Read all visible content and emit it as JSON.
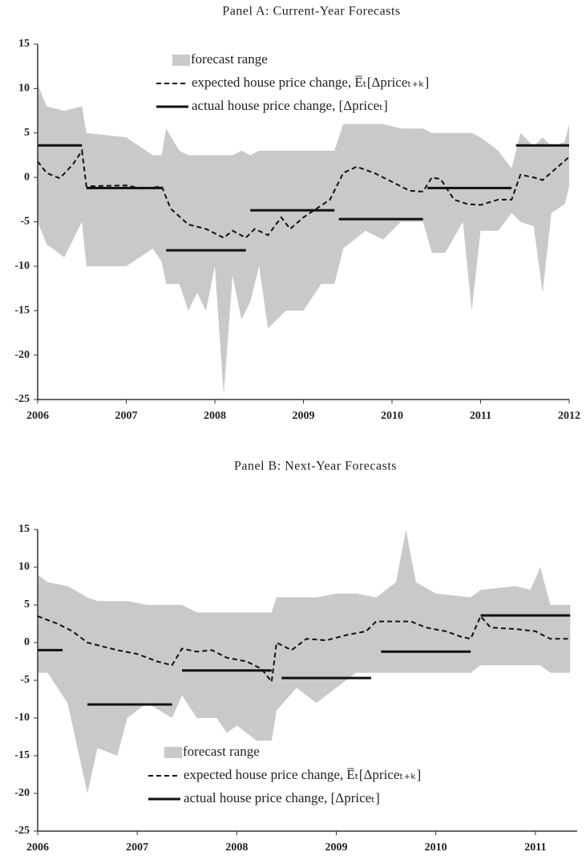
{
  "chart_data": [
    {
      "type": "line",
      "title": "Panel A: Current-Year Forecasts",
      "xlim": [
        2006,
        2012
      ],
      "xticks": [
        2006,
        2007,
        2008,
        2009,
        2010,
        2011,
        2012
      ],
      "ylim": [
        -25,
        15
      ],
      "yticks": [
        -25,
        -20,
        -15,
        -10,
        -5,
        0,
        5,
        10,
        15
      ],
      "grid": false,
      "legend": "upper center",
      "band": {
        "name": "forecast range",
        "color": "#c9c9c9",
        "x": [
          2006.0,
          2006.1,
          2006.3,
          2006.5,
          2006.55,
          2007.0,
          2007.3,
          2007.4,
          2007.45,
          2007.6,
          2007.7,
          2007.8,
          2007.9,
          2008.0,
          2008.1,
          2008.2,
          2008.3,
          2008.4,
          2008.5,
          2008.6,
          2008.8,
          2009.0,
          2009.2,
          2009.35,
          2009.45,
          2009.7,
          2009.9,
          2010.1,
          2010.35,
          2010.45,
          2010.6,
          2010.8,
          2010.9,
          2011.0,
          2011.2,
          2011.35,
          2011.45,
          2011.6,
          2011.7,
          2011.8,
          2011.95,
          2012.0
        ],
        "low": [
          -5,
          -7.5,
          -9,
          -5,
          -10,
          -10,
          -8,
          -9.5,
          -12,
          -12,
          -15,
          -13,
          -15,
          -10,
          -24.5,
          -11,
          -16,
          -14,
          -10,
          -17,
          -15,
          -15,
          -12,
          -12,
          -8,
          -6,
          -7,
          -5,
          -5,
          -8.5,
          -8.5,
          -5,
          -15,
          -6,
          -6,
          -4,
          -5,
          -5.5,
          -13,
          -4,
          -3,
          -1
        ],
        "high": [
          10.5,
          8,
          7.5,
          8,
          5,
          4.5,
          2.5,
          2.5,
          5.5,
          3,
          2.5,
          2.5,
          2.5,
          2.5,
          2.5,
          2.5,
          3,
          2.5,
          3,
          3,
          3,
          3,
          3,
          3,
          6,
          6,
          6,
          5.5,
          5.5,
          5,
          5,
          5,
          5,
          4.5,
          3,
          1,
          5,
          3.5,
          4.5,
          3.5,
          4,
          6
        ]
      },
      "series": [
        {
          "name": "expected house price change, E̅ₜ[Δpriceₜ₊ₖ]",
          "color": "#111111",
          "dash": true,
          "x": [
            2006.0,
            2006.1,
            2006.25,
            2006.4,
            2006.5,
            2006.55,
            2007.0,
            2007.2,
            2007.4,
            2007.5,
            2007.7,
            2007.9,
            2008.1,
            2008.2,
            2008.35,
            2008.45,
            2008.6,
            2008.75,
            2008.85,
            2009.0,
            2009.3,
            2009.45,
            2009.6,
            2009.8,
            2010.0,
            2010.2,
            2010.35,
            2010.45,
            2010.55,
            2010.7,
            2010.85,
            2011.0,
            2011.2,
            2011.35,
            2011.45,
            2011.6,
            2011.7,
            2012.0
          ],
          "values": [
            1.8,
            0.5,
            -0.1,
            1.5,
            3.0,
            -1.0,
            -0.9,
            -1.3,
            -1.0,
            -3.5,
            -5.3,
            -5.8,
            -6.8,
            -6.0,
            -6.8,
            -5.8,
            -6.5,
            -4.5,
            -5.8,
            -4.5,
            -2.5,
            0.5,
            1.2,
            0.5,
            -0.5,
            -1.5,
            -1.6,
            0.0,
            -0.2,
            -2.5,
            -3.0,
            -3.1,
            -2.5,
            -2.5,
            0.3,
            0.0,
            -0.3,
            2.3
          ]
        },
        {
          "name": "actual house price change, [Δpriceₜ]",
          "color": "#111111",
          "dash": false,
          "x": [
            2006.0,
            2006.5,
            2006.52,
            2006.55,
            2007.4,
            2007.42,
            2007.45,
            2008.35,
            2008.37,
            2008.4,
            2009.35,
            2009.37,
            2009.4,
            2010.35,
            2010.37,
            2010.4,
            2011.35,
            2011.37,
            2011.4,
            2012.0
          ],
          "values": [
            3.6,
            3.6,
            null,
            -1.2,
            -1.2,
            null,
            -8.2,
            -8.2,
            null,
            -3.7,
            -3.7,
            null,
            -4.7,
            -4.7,
            null,
            -1.2,
            -1.2,
            null,
            3.6,
            3.6
          ]
        }
      ]
    },
    {
      "type": "line",
      "title": "Panel B: Next-Year Forecasts",
      "xlim": [
        2006,
        2011.42
      ],
      "xticks": [
        2006,
        2007,
        2008,
        2009,
        2010,
        2011
      ],
      "ylim": [
        -25,
        15
      ],
      "yticks": [
        -25,
        -20,
        -15,
        -10,
        -5,
        0,
        5,
        10,
        15
      ],
      "grid": false,
      "legend": "lower center",
      "band": {
        "name": "forecast range",
        "color": "#c9c9c9",
        "x": [
          2006.0,
          2006.1,
          2006.3,
          2006.5,
          2006.6,
          2006.8,
          2006.9,
          2007.1,
          2007.35,
          2007.45,
          2007.6,
          2007.8,
          2007.9,
          2008.0,
          2008.1,
          2008.2,
          2008.35,
          2008.4,
          2008.6,
          2008.8,
          2009.0,
          2009.2,
          2009.4,
          2009.6,
          2009.7,
          2009.8,
          2010.0,
          2010.35,
          2010.45,
          2010.8,
          2010.95,
          2011.05,
          2011.15,
          2011.35
        ],
        "low": [
          -4,
          -4,
          -8,
          -20,
          -14,
          -15,
          -10,
          -8,
          -10,
          -7,
          -10,
          -10,
          -12,
          -11,
          -12,
          -13,
          -13,
          -9,
          -6,
          -8,
          -6,
          -4,
          -4,
          -4,
          -4,
          -4,
          -4,
          -4,
          -3,
          -3,
          -3,
          -3,
          -4,
          -4
        ],
        "high": [
          9,
          8,
          7.5,
          6,
          5.5,
          5.5,
          5.5,
          5,
          5,
          5,
          4,
          4,
          4,
          4,
          4,
          4,
          4,
          6,
          6,
          6,
          6.5,
          6.5,
          6,
          8,
          15,
          8,
          6.5,
          6,
          7,
          7.5,
          7,
          10,
          5,
          5
        ]
      },
      "series": [
        {
          "name": "expected house price change, E̅ₜ[Δpriceₜ₊ₖ]",
          "color": "#111111",
          "dash": true,
          "x": [
            2006.0,
            2006.2,
            2006.35,
            2006.5,
            2006.8,
            2007.0,
            2007.2,
            2007.35,
            2007.45,
            2007.6,
            2007.75,
            2007.9,
            2008.1,
            2008.25,
            2008.35,
            2008.4,
            2008.55,
            2008.7,
            2008.9,
            2009.1,
            2009.3,
            2009.4,
            2009.6,
            2009.75,
            2009.9,
            2010.1,
            2010.25,
            2010.35,
            2010.45,
            2010.55,
            2010.8,
            2011.0,
            2011.15,
            2011.35
          ],
          "values": [
            3.5,
            2.5,
            1.5,
            0.0,
            -1.0,
            -1.5,
            -2.5,
            -3.0,
            -0.8,
            -1.2,
            -1.0,
            -2.0,
            -2.5,
            -3.5,
            -5.2,
            0.0,
            -1.0,
            0.5,
            0.3,
            1.0,
            1.5,
            2.8,
            2.8,
            2.8,
            2.0,
            1.5,
            0.8,
            0.5,
            3.5,
            2.0,
            1.8,
            1.5,
            0.5,
            0.5
          ]
        },
        {
          "name": "actual house price change, [Δpriceₜ]",
          "color": "#111111",
          "dash": false,
          "x": [
            2006.0,
            2006.25,
            2006.3,
            2006.5,
            2007.35,
            2007.4,
            2007.45,
            2008.35,
            2008.4,
            2008.45,
            2009.35,
            2009.4,
            2009.45,
            2010.35,
            2010.4,
            2010.45,
            2011.35
          ],
          "values": [
            -1.0,
            -1.0,
            null,
            -8.2,
            -8.2,
            null,
            -3.7,
            -3.7,
            null,
            -4.7,
            -4.7,
            null,
            -1.2,
            -1.2,
            null,
            3.6,
            3.6
          ]
        }
      ]
    }
  ]
}
